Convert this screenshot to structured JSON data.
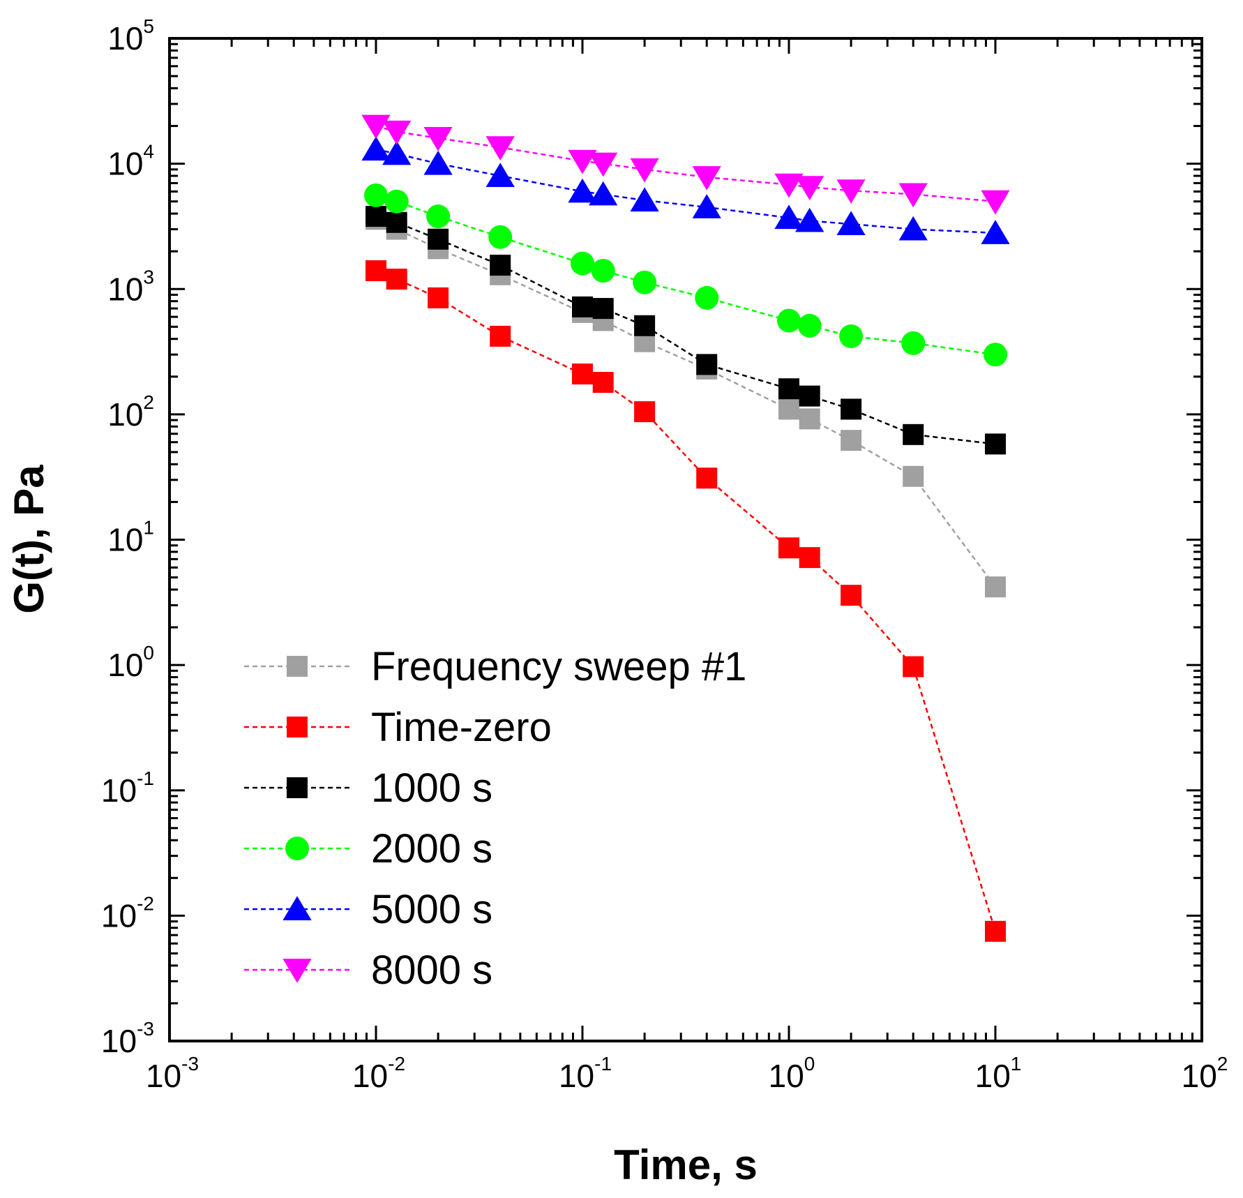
{
  "chart_data": {
    "type": "scatter",
    "xscale": "log",
    "yscale": "log",
    "xlabel": "Time, s",
    "ylabel": "G(t), Pa",
    "xlim": [
      0.001,
      100
    ],
    "ylim": [
      0.001,
      100000
    ],
    "x_ticks": [
      {
        "base": "10",
        "exp": "-3"
      },
      {
        "base": "10",
        "exp": "-2"
      },
      {
        "base": "10",
        "exp": "-1"
      },
      {
        "base": "10",
        "exp": "0"
      },
      {
        "base": "10",
        "exp": "1"
      },
      {
        "base": "10",
        "exp": "2"
      }
    ],
    "y_ticks": [
      {
        "base": "10",
        "exp": "-3"
      },
      {
        "base": "10",
        "exp": "-2"
      },
      {
        "base": "10",
        "exp": "-1"
      },
      {
        "base": "10",
        "exp": "0"
      },
      {
        "base": "10",
        "exp": "1"
      },
      {
        "base": "10",
        "exp": "2"
      },
      {
        "base": "10",
        "exp": "3"
      },
      {
        "base": "10",
        "exp": "4"
      },
      {
        "base": "10",
        "exp": "5"
      }
    ],
    "legend_position": "bottom-left",
    "series": [
      {
        "name": "Frequency sweep #1",
        "color": "#a0a0a0",
        "marker": "square",
        "x": [
          0.01,
          0.0126,
          0.02,
          0.04,
          0.1,
          0.126,
          0.2,
          0.4,
          1,
          1.26,
          2,
          4,
          10
        ],
        "y": [
          3600,
          3000,
          2100,
          1300,
          650,
          560,
          380,
          230,
          110,
          92,
          62,
          32,
          4.2
        ]
      },
      {
        "name": "Time-zero",
        "color": "#ff0000",
        "marker": "square",
        "x": [
          0.01,
          0.0126,
          0.02,
          0.04,
          0.1,
          0.126,
          0.2,
          0.4,
          1,
          1.26,
          2,
          4,
          10
        ],
        "y": [
          1400,
          1200,
          850,
          420,
          210,
          180,
          105,
          31,
          8.6,
          7.2,
          3.6,
          0.97,
          0.0075
        ]
      },
      {
        "name": "1000 s",
        "color": "#000000",
        "marker": "square",
        "x": [
          0.01,
          0.0126,
          0.02,
          0.04,
          0.1,
          0.126,
          0.2,
          0.4,
          1,
          1.26,
          2,
          4,
          10
        ],
        "y": [
          3800,
          3400,
          2500,
          1550,
          720,
          700,
          510,
          250,
          160,
          140,
          110,
          69,
          58
        ]
      },
      {
        "name": "2000 s",
        "color": "#00ff00",
        "marker": "circle",
        "x": [
          0.01,
          0.0126,
          0.02,
          0.04,
          0.1,
          0.126,
          0.2,
          0.4,
          1,
          1.26,
          2,
          4,
          10
        ],
        "y": [
          5600,
          5000,
          3800,
          2600,
          1600,
          1400,
          1130,
          850,
          560,
          510,
          420,
          370,
          300
        ]
      },
      {
        "name": "5000 s",
        "color": "#0000ff",
        "marker": "triangle-up",
        "x": [
          0.01,
          0.0126,
          0.02,
          0.04,
          0.1,
          0.126,
          0.2,
          0.4,
          1,
          1.26,
          2,
          4,
          10
        ],
        "y": [
          13000,
          12000,
          10000,
          8000,
          6000,
          5700,
          5100,
          4500,
          3700,
          3500,
          3300,
          3000,
          2800
        ]
      },
      {
        "name": "8000 s",
        "color": "#ff00ff",
        "marker": "triangle-down",
        "x": [
          0.01,
          0.0126,
          0.02,
          0.04,
          0.1,
          0.126,
          0.2,
          0.4,
          1,
          1.26,
          2,
          4,
          10
        ],
        "y": [
          20000,
          18000,
          16000,
          13500,
          10500,
          10000,
          9000,
          7800,
          6800,
          6500,
          6100,
          5700,
          5000
        ]
      }
    ]
  }
}
